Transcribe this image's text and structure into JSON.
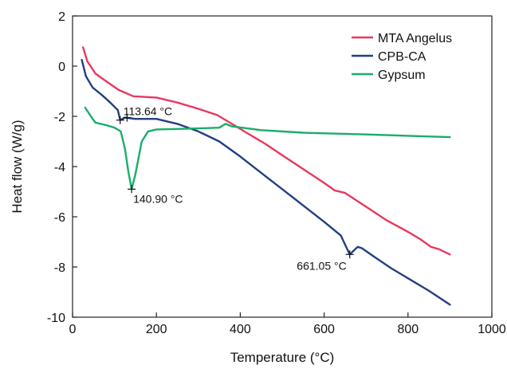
{
  "chart_data": {
    "type": "line",
    "title": "",
    "xlabel": "Temperature (°C)",
    "ylabel": "Heat flow (W/g)",
    "xlim": [
      0,
      1000
    ],
    "ylim": [
      -10,
      2
    ],
    "xticks": [
      0,
      200,
      400,
      600,
      800,
      1000
    ],
    "yticks": [
      2,
      0,
      -2,
      -4,
      -6,
      -8,
      -10
    ],
    "legend_position": "top-right",
    "grid": false,
    "series": [
      {
        "name": "MTA Angelus",
        "color": "#e8385f",
        "points": [
          [
            25,
            0.75
          ],
          [
            35,
            0.2
          ],
          [
            55,
            -0.3
          ],
          [
            80,
            -0.6
          ],
          [
            110,
            -0.95
          ],
          [
            145,
            -1.2
          ],
          [
            200,
            -1.25
          ],
          [
            250,
            -1.45
          ],
          [
            300,
            -1.7
          ],
          [
            345,
            -1.95
          ],
          [
            380,
            -2.3
          ],
          [
            420,
            -2.7
          ],
          [
            440,
            -2.9
          ],
          [
            460,
            -3.1
          ],
          [
            500,
            -3.55
          ],
          [
            550,
            -4.1
          ],
          [
            600,
            -4.65
          ],
          [
            625,
            -4.95
          ],
          [
            650,
            -5.05
          ],
          [
            700,
            -5.6
          ],
          [
            750,
            -6.15
          ],
          [
            800,
            -6.6
          ],
          [
            830,
            -6.9
          ],
          [
            855,
            -7.2
          ],
          [
            875,
            -7.3
          ],
          [
            900,
            -7.5
          ]
        ]
      },
      {
        "name": "CPB-CA",
        "color": "#233f82",
        "points": [
          [
            22,
            0.25
          ],
          [
            32,
            -0.4
          ],
          [
            48,
            -0.85
          ],
          [
            70,
            -1.15
          ],
          [
            90,
            -1.45
          ],
          [
            108,
            -1.75
          ],
          [
            113.64,
            -2.15
          ],
          [
            125,
            -2.05
          ],
          [
            150,
            -2.1
          ],
          [
            200,
            -2.1
          ],
          [
            250,
            -2.3
          ],
          [
            300,
            -2.6
          ],
          [
            350,
            -3.0
          ],
          [
            400,
            -3.6
          ],
          [
            450,
            -4.25
          ],
          [
            500,
            -4.9
          ],
          [
            550,
            -5.55
          ],
          [
            600,
            -6.2
          ],
          [
            640,
            -6.75
          ],
          [
            661.05,
            -7.5
          ],
          [
            680,
            -7.2
          ],
          [
            690,
            -7.25
          ],
          [
            720,
            -7.6
          ],
          [
            760,
            -8.05
          ],
          [
            800,
            -8.45
          ],
          [
            850,
            -8.95
          ],
          [
            900,
            -9.5
          ]
        ]
      },
      {
        "name": "Gypsum",
        "color": "#1aad6a",
        "points": [
          [
            30,
            -1.65
          ],
          [
            48,
            -2.1
          ],
          [
            55,
            -2.25
          ],
          [
            80,
            -2.35
          ],
          [
            100,
            -2.45
          ],
          [
            115,
            -2.6
          ],
          [
            125,
            -3.3
          ],
          [
            133,
            -4.2
          ],
          [
            140.9,
            -4.9
          ],
          [
            150,
            -4.3
          ],
          [
            165,
            -3.0
          ],
          [
            180,
            -2.6
          ],
          [
            200,
            -2.52
          ],
          [
            250,
            -2.5
          ],
          [
            300,
            -2.48
          ],
          [
            350,
            -2.45
          ],
          [
            365,
            -2.3
          ],
          [
            380,
            -2.4
          ],
          [
            450,
            -2.55
          ],
          [
            550,
            -2.65
          ],
          [
            700,
            -2.72
          ],
          [
            900,
            -2.83
          ]
        ]
      }
    ],
    "annotations": [
      {
        "text": "113.64 °C",
        "x": 113.64,
        "y": -2.15,
        "target_series": 1
      },
      {
        "text": "140.90 °C",
        "x": 140.9,
        "y": -4.9,
        "target_series": 2
      },
      {
        "text": "661.05 °C",
        "x": 661.05,
        "y": -7.5,
        "target_series": 1
      }
    ]
  }
}
